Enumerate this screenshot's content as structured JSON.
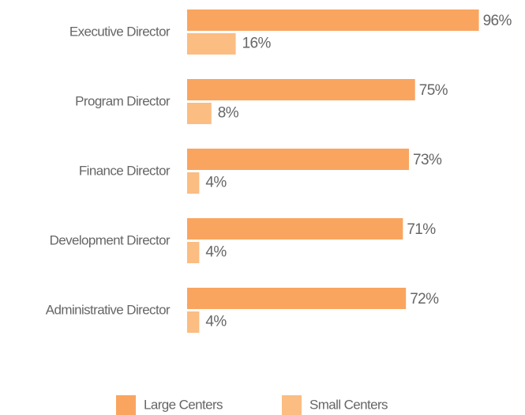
{
  "chart_data": {
    "type": "bar",
    "orientation": "horizontal",
    "categories": [
      "Executive Director",
      "Program Director",
      "Finance Director",
      "Development Director",
      "Administrative Director"
    ],
    "series": [
      {
        "name": "Large Centers",
        "color": "#f9a560",
        "values": [
          96,
          75,
          73,
          71,
          72
        ],
        "value_labels": [
          "96%",
          "75%",
          "73%",
          "71%",
          "72%"
        ]
      },
      {
        "name": "Small Centers",
        "color": "#fbbd82",
        "values": [
          16,
          8,
          4,
          4,
          4
        ],
        "value_labels": [
          "16%",
          "8%",
          "4%",
          "4%",
          "4%"
        ]
      }
    ],
    "xlim": [
      0,
      100
    ],
    "legend": "bottom"
  }
}
